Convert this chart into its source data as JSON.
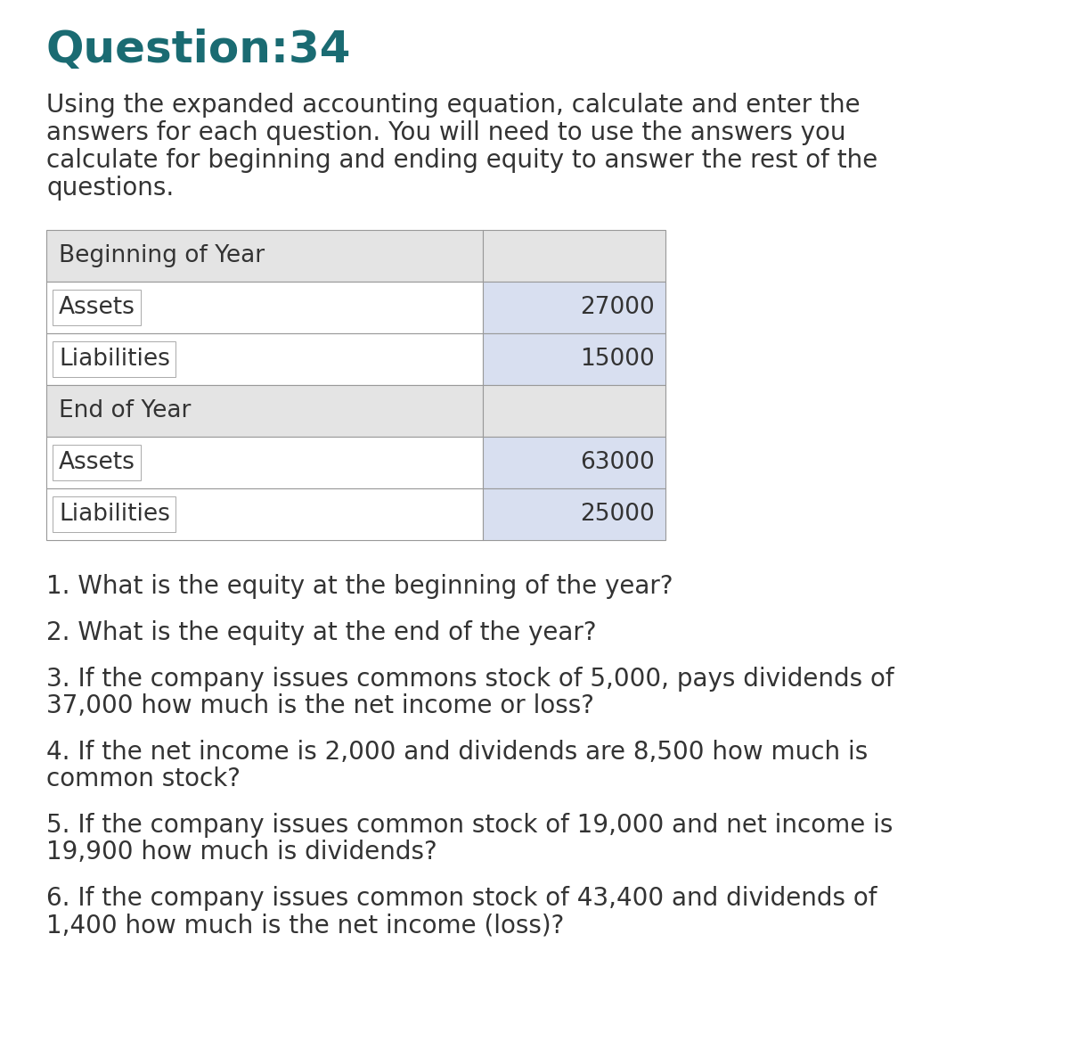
{
  "title": "Question:34",
  "title_color": "#1a6b72",
  "title_fontsize": 36,
  "intro_fontsize": 20,
  "body_fontsize": 19,
  "question_fontsize": 20,
  "table_rows": [
    {
      "label": "Beginning of Year",
      "value": "",
      "is_header": true
    },
    {
      "label": "Assets",
      "value": "27000",
      "is_header": false
    },
    {
      "label": "Liabilities",
      "value": "15000",
      "is_header": false
    },
    {
      "label": "End of Year",
      "value": "",
      "is_header": true
    },
    {
      "label": "Assets",
      "value": "63000",
      "is_header": false
    },
    {
      "label": "Liabilities",
      "value": "25000",
      "is_header": false
    }
  ],
  "header_bg": "#e4e4e4",
  "row_bg_light": "#d8dff0",
  "row_bg_white": "#ffffff",
  "table_border_color": "#999999",
  "questions": [
    [
      "1. What is the equity at the beginning of the year?"
    ],
    [
      "2. What is the equity at the end of the year?"
    ],
    [
      "3. If the company issues commons stock of 5,000, pays dividends of",
      "37,000 how much is the net income or loss?"
    ],
    [
      "4. If the net income is 2,000 and dividends are 8,500 how much is",
      "common stock?"
    ],
    [
      "5. If the company issues common stock of 19,000 and net income is",
      "19,900 how much is dividends?"
    ],
    [
      "6. If the company issues common stock of 43,400 and dividends of",
      "1,400 how much is the net income (loss)?"
    ]
  ],
  "bg_color": "#ffffff",
  "text_color": "#333333",
  "intro_lines": [
    "Using the expanded accounting equation, calculate and enter the",
    "answers for each question. You will need to use the answers you",
    "calculate for beginning and ending equity to answer the rest of the",
    "questions."
  ]
}
